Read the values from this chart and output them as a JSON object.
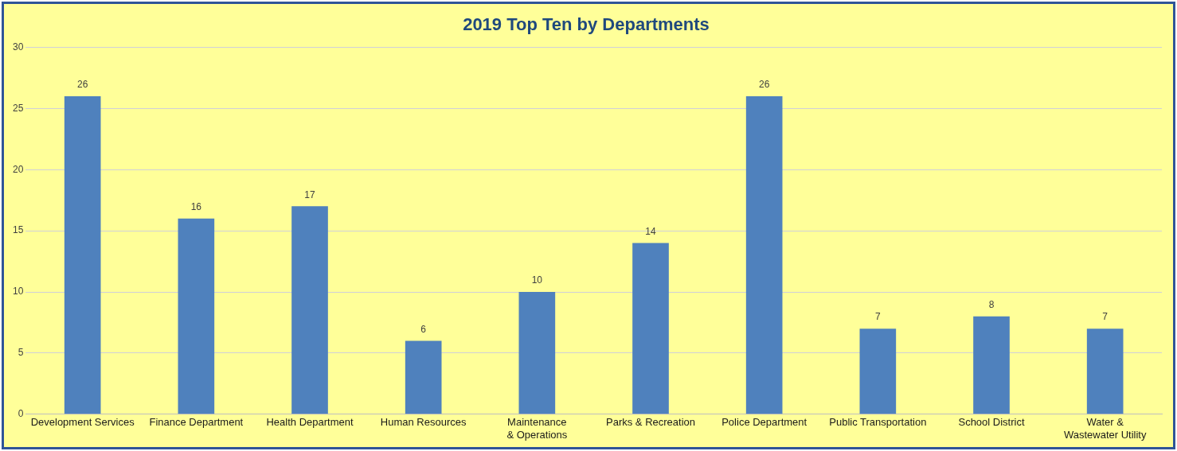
{
  "chart_data": {
    "type": "bar",
    "title": "2019 Top Ten by Departments",
    "categories": [
      "Development Services",
      "Finance Department",
      "Health Department",
      "Human Resources",
      "Maintenance & Operations",
      "Parks & Recreation",
      "Police Department",
      "Public Transportation",
      "School District",
      "Water & Wastewater Utility"
    ],
    "values": [
      26,
      16,
      17,
      6,
      10,
      14,
      26,
      7,
      8,
      7
    ],
    "color": "#4f81bd",
    "ylim": [
      0,
      30
    ],
    "yticks": [
      0,
      5,
      10,
      15,
      20,
      25,
      30
    ],
    "grid": "y",
    "data_labels": true
  }
}
